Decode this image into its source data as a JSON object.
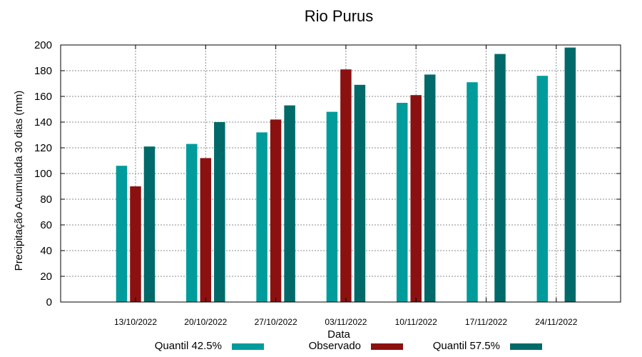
{
  "chart_data": {
    "type": "bar",
    "title": "Rio Purus",
    "xlabel": "Data",
    "ylabel": "Precipitação Acumulada 30 dias (mm)",
    "categories": [
      "13/10/2022",
      "20/10/2022",
      "27/10/2022",
      "03/11/2022",
      "10/11/2022",
      "17/11/2022",
      "24/11/2022"
    ],
    "ylim": [
      0,
      200
    ],
    "yticks": [
      0,
      20,
      40,
      60,
      80,
      100,
      120,
      140,
      160,
      180,
      200
    ],
    "grid": true,
    "legend_position": "bottom",
    "series": [
      {
        "name": "Quantil 42.5%",
        "color": "#009b9b",
        "values": [
          106,
          123,
          132,
          148,
          155,
          171,
          176
        ]
      },
      {
        "name": "Observado",
        "color": "#8b1111",
        "values": [
          90,
          112,
          142,
          181,
          161,
          null,
          null
        ]
      },
      {
        "name": "Quantil 57.5%",
        "color": "#006a6a",
        "values": [
          121,
          140,
          153,
          169,
          177,
          193,
          198
        ]
      }
    ]
  }
}
